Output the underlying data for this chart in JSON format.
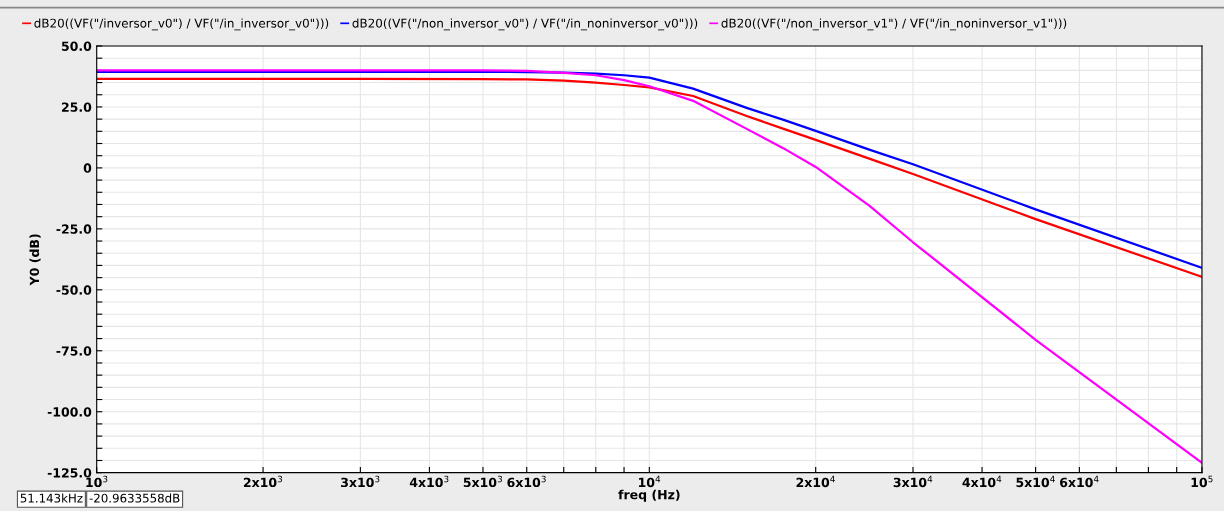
{
  "chart_data": {
    "type": "line",
    "xlabel": "freq (Hz)",
    "ylabel": "Y0 (dB)",
    "log": "x",
    "grid": true,
    "legend": "top",
    "marker": "none",
    "line_style": "solid",
    "xlim": [
      1000,
      100000
    ],
    "ylim": [
      -125,
      50
    ],
    "xticks": [
      {
        "value": 1000,
        "label": "10$^{3}$"
      },
      {
        "value": 2000,
        "label": "2x10$^{3}$"
      },
      {
        "value": 3000,
        "label": "3x10$^{3}$"
      },
      {
        "value": 4000,
        "label": "4x10$^{3}$"
      },
      {
        "value": 5000,
        "label": "5x10$^{3}$"
      },
      {
        "value": 6000,
        "label": "6x10$^{3}$"
      },
      {
        "value": 7000,
        "label": null
      },
      {
        "value": 8000,
        "label": null
      },
      {
        "value": 9000,
        "label": null
      },
      {
        "value": 10000,
        "label": "10$^{4}$"
      },
      {
        "value": 20000,
        "label": "2x10$^{4}$"
      },
      {
        "value": 30000,
        "label": "3x10$^{4}$"
      },
      {
        "value": 40000,
        "label": "4x10$^{4}$"
      },
      {
        "value": 50000,
        "label": "5x10$^{4}$"
      },
      {
        "value": 60000,
        "label": "6x10$^{4}$"
      },
      {
        "value": 70000,
        "label": null
      },
      {
        "value": 80000,
        "label": null
      },
      {
        "value": 90000,
        "label": null
      },
      {
        "value": 100000,
        "label": "10$^{5}$"
      }
    ],
    "yticks": [
      {
        "value": 50,
        "label": "50.0"
      },
      {
        "value": 45,
        "label": null
      },
      {
        "value": 40,
        "label": null
      },
      {
        "value": 35,
        "label": null
      },
      {
        "value": 30,
        "label": null
      },
      {
        "value": 25,
        "label": "25.0"
      },
      {
        "value": 20,
        "label": null
      },
      {
        "value": 15,
        "label": null
      },
      {
        "value": 10,
        "label": null
      },
      {
        "value": 5,
        "label": null
      },
      {
        "value": 0,
        "label": "0"
      },
      {
        "value": -5,
        "label": null
      },
      {
        "value": -10,
        "label": null
      },
      {
        "value": -15,
        "label": null
      },
      {
        "value": -20,
        "label": null
      },
      {
        "value": -25,
        "label": "-25.0"
      },
      {
        "value": -30,
        "label": null
      },
      {
        "value": -35,
        "label": null
      },
      {
        "value": -40,
        "label": null
      },
      {
        "value": -45,
        "label": null
      },
      {
        "value": -50,
        "label": "-50.0"
      },
      {
        "value": -55,
        "label": null
      },
      {
        "value": -60,
        "label": null
      },
      {
        "value": -65,
        "label": null
      },
      {
        "value": -70,
        "label": null
      },
      {
        "value": -75,
        "label": "-75.0"
      },
      {
        "value": -80,
        "label": null
      },
      {
        "value": -85,
        "label": null
      },
      {
        "value": -90,
        "label": null
      },
      {
        "value": -95,
        "label": null
      },
      {
        "value": -100,
        "label": "-100.0"
      },
      {
        "value": -105,
        "label": null
      },
      {
        "value": -110,
        "label": null
      },
      {
        "value": -115,
        "label": null
      },
      {
        "value": -120,
        "label": null
      },
      {
        "value": -125,
        "label": "-125.0"
      }
    ],
    "x": [
      1000,
      3000,
      5000,
      6000,
      7000,
      8000,
      9000,
      10000,
      12000,
      15000,
      17500,
      20000,
      25000,
      30000,
      50000,
      100000
    ],
    "series": [
      {
        "name": "dB20((VF(\"/inversor_v0\") / VF(\"/in_inversor_v0\")))",
        "color": "#ff0000",
        "values": [
          36.5,
          36.5,
          36.4,
          36.3,
          35.8,
          35,
          34,
          33,
          29.5,
          21.3,
          16,
          11.5,
          3.8,
          -2.5,
          -21,
          -44.7
        ]
      },
      {
        "name": "dB20((VF(\"/non_inversor_v0\") / VF(\"/in_noninversor_v0\")))",
        "color": "#0000ff",
        "values": [
          39.4,
          39.4,
          39.4,
          39.3,
          39.1,
          38.7,
          38,
          37,
          32.5,
          24.6,
          19.7,
          15.2,
          7.5,
          1.5,
          -17,
          -41
        ]
      },
      {
        "name": "dB20((VF(\"/non_inversor_v1\") / VF(\"/in_noninversor_v1\")))",
        "color": "#ff00ff",
        "values": [
          40,
          40,
          40,
          39.8,
          39,
          38,
          36,
          33.5,
          27.5,
          16,
          8,
          0.4,
          -15.5,
          -30.5,
          -70.5,
          -121
        ]
      }
    ],
    "annotations": [
      "51.143kHz",
      "-20.9633558dB"
    ]
  }
}
